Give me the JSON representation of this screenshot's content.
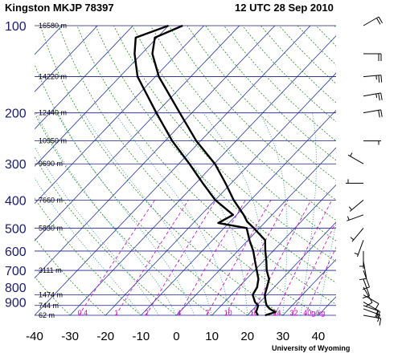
{
  "header": {
    "station": "Kingston MKJP 78397",
    "time": "12 UTC 28 Sep 2010"
  },
  "credit": "University of Wyoming",
  "colors": {
    "isobar": "#1a1a8c",
    "isotherm": "#2233aa",
    "dry_adiabat": "#2a8a2a",
    "moist_adiabat": "#2a8a8a",
    "mixing_ratio": "#cc00cc",
    "profile": "#000000",
    "wind_barb": "#000000"
  },
  "chart_data": {
    "type": "skew-t",
    "xlim": [
      -40,
      45
    ],
    "pressure_range": [
      1000,
      100
    ],
    "log_pressure_axis": true,
    "pressure_ticks": [
      100,
      200,
      300,
      400,
      500,
      600,
      700,
      800,
      900
    ],
    "temperature_ticks": [
      -40,
      -30,
      -20,
      -10,
      0,
      10,
      20,
      30,
      40
    ],
    "height_labels": [
      {
        "p": 100,
        "label": "16580 m"
      },
      {
        "p": 150,
        "label": "14220 m"
      },
      {
        "p": 200,
        "label": "12440 m"
      },
      {
        "p": 250,
        "label": "10950 m"
      },
      {
        "p": 300,
        "label": "9690 m"
      },
      {
        "p": 400,
        "label": "7660 m"
      },
      {
        "p": 500,
        "label": "5830 m"
      },
      {
        "p": 700,
        "label": "3111 m"
      },
      {
        "p": 850,
        "label": "1474 m"
      },
      {
        "p": 925,
        "label": "744 m"
      },
      {
        "p": 1000,
        "label": "62 m"
      }
    ],
    "mixing_ratio_labels": [
      "0.4",
      "1",
      "2",
      "4",
      "7",
      "10",
      "16",
      "24",
      "32",
      "40g/kg"
    ],
    "temperature_profile": [
      {
        "p": 1000,
        "t": 25.0
      },
      {
        "p": 975,
        "t": 27.0
      },
      {
        "p": 950,
        "t": 24.6
      },
      {
        "p": 925,
        "t": 22.8
      },
      {
        "p": 900,
        "t": 21.6
      },
      {
        "p": 850,
        "t": 19.4
      },
      {
        "p": 800,
        "t": 18.0
      },
      {
        "p": 750,
        "t": 16.4
      },
      {
        "p": 700,
        "t": 13.4
      },
      {
        "p": 650,
        "t": 10.8
      },
      {
        "p": 600,
        "t": 7.8
      },
      {
        "p": 550,
        "t": 4.8
      },
      {
        "p": 500,
        "t": -1.6
      },
      {
        "p": 475,
        "t": -5.2
      },
      {
        "p": 450,
        "t": -8.0
      },
      {
        "p": 400,
        "t": -14.8
      },
      {
        "p": 350,
        "t": -21.6
      },
      {
        "p": 300,
        "t": -29.8
      },
      {
        "p": 250,
        "t": -41.2
      },
      {
        "p": 200,
        "t": -53.4
      },
      {
        "p": 150,
        "t": -69.0
      },
      {
        "p": 125,
        "t": -77.0
      },
      {
        "p": 110,
        "t": -80.6
      },
      {
        "p": 100,
        "t": -76.0
      }
    ],
    "dewpoint_profile": [
      {
        "p": 1000,
        "t": 23.0
      },
      {
        "p": 975,
        "t": 21.6
      },
      {
        "p": 950,
        "t": 21.0
      },
      {
        "p": 925,
        "t": 20.4
      },
      {
        "p": 900,
        "t": 18.6
      },
      {
        "p": 850,
        "t": 16.0
      },
      {
        "p": 800,
        "t": 15.2
      },
      {
        "p": 750,
        "t": 13.4
      },
      {
        "p": 700,
        "t": 10.6
      },
      {
        "p": 650,
        "t": 7.6
      },
      {
        "p": 600,
        "t": 4.4
      },
      {
        "p": 550,
        "t": 0.4
      },
      {
        "p": 500,
        "t": -3.6
      },
      {
        "p": 480,
        "t": -13.0
      },
      {
        "p": 450,
        "t": -11.0
      },
      {
        "p": 400,
        "t": -20.0
      },
      {
        "p": 350,
        "t": -28.0
      },
      {
        "p": 300,
        "t": -37.0
      },
      {
        "p": 250,
        "t": -48.0
      },
      {
        "p": 200,
        "t": -60.0
      },
      {
        "p": 150,
        "t": -75.0
      },
      {
        "p": 125,
        "t": -82.0
      },
      {
        "p": 110,
        "t": -86.0
      },
      {
        "p": 100,
        "t": -80.0
      }
    ],
    "wind_barbs": [
      {
        "p": 1000,
        "dir": 100,
        "kt": 10
      },
      {
        "p": 950,
        "dir": 110,
        "kt": 15
      },
      {
        "p": 925,
        "dir": 110,
        "kt": 15
      },
      {
        "p": 900,
        "dir": 120,
        "kt": 10
      },
      {
        "p": 850,
        "dir": 120,
        "kt": 10
      },
      {
        "p": 800,
        "dir": 150,
        "kt": 10
      },
      {
        "p": 750,
        "dir": 160,
        "kt": 10
      },
      {
        "p": 700,
        "dir": 160,
        "kt": 10
      },
      {
        "p": 650,
        "dir": 170,
        "kt": 10
      },
      {
        "p": 600,
        "dir": 180,
        "kt": 5
      },
      {
        "p": 550,
        "dir": 200,
        "kt": 5
      },
      {
        "p": 500,
        "dir": 220,
        "kt": 5
      },
      {
        "p": 450,
        "dir": 250,
        "kt": 5
      },
      {
        "p": 400,
        "dir": 230,
        "kt": 5
      },
      {
        "p": 350,
        "dir": 270,
        "kt": 5
      },
      {
        "p": 300,
        "dir": 300,
        "kt": 5
      },
      {
        "p": 250,
        "dir": 90,
        "kt": 5
      },
      {
        "p": 200,
        "dir": 80,
        "kt": 20
      },
      {
        "p": 175,
        "dir": 80,
        "kt": 25
      },
      {
        "p": 150,
        "dir": 85,
        "kt": 25
      },
      {
        "p": 125,
        "dir": 90,
        "kt": 20
      },
      {
        "p": 100,
        "dir": 60,
        "kt": 20
      }
    ]
  }
}
